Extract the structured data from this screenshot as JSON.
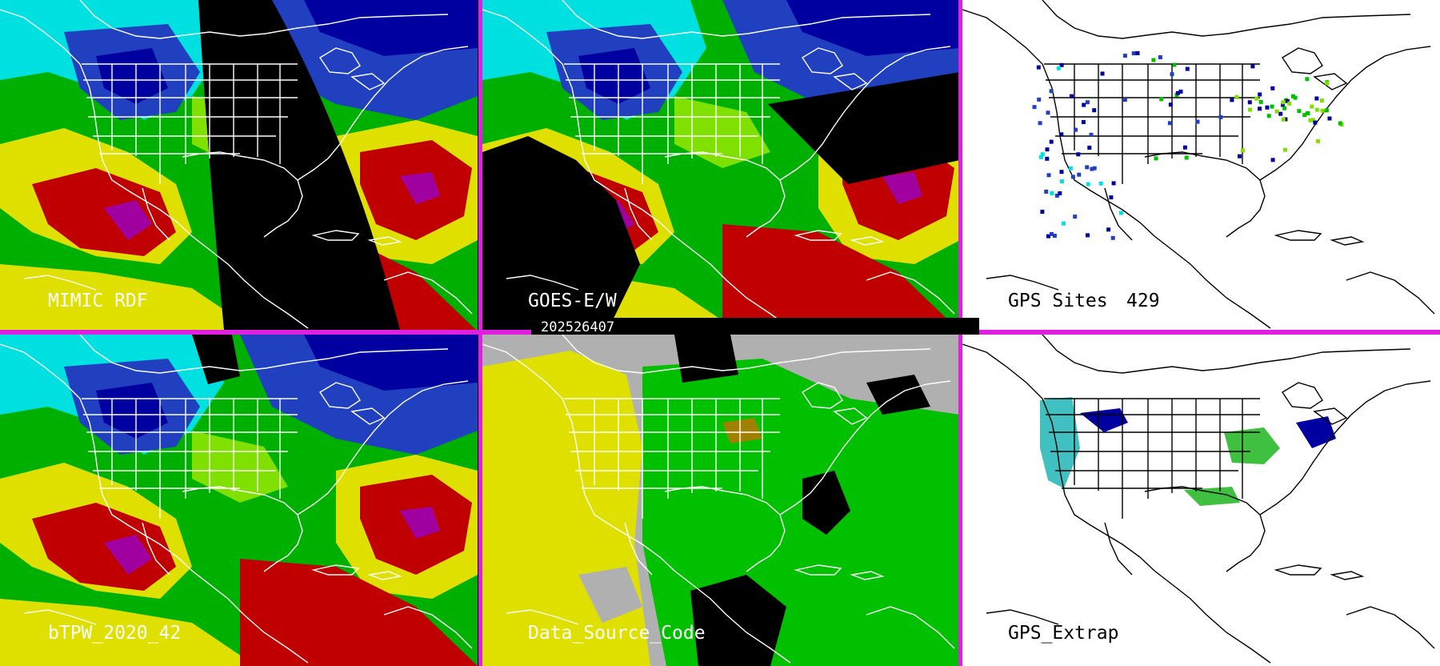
{
  "panels": [
    {
      "id": "mimic",
      "label": "MIMIC RDF"
    },
    {
      "id": "goes",
      "label": "GOES-E/W"
    },
    {
      "id": "gps_sites",
      "label": "GPS Sites",
      "count": "429"
    },
    {
      "id": "btpw",
      "label": "bTPW_2020_42"
    },
    {
      "id": "dsc",
      "label": "Data_Source_Code"
    },
    {
      "id": "gps_extrap",
      "label": "GPS_Extrap"
    }
  ],
  "timestamp": "202526407",
  "colors": {
    "divider": "#e020e0",
    "background": "#000000",
    "map_lines_dark": "#ffffff",
    "map_lines_light": "#000000",
    "moisture_scale": [
      "#0000a0",
      "#2040c0",
      "#00e0e0",
      "#00c000",
      "#80e000",
      "#e0e000",
      "#c00000",
      "#a000a0"
    ],
    "data_source_yellow": "#e0e000",
    "data_source_green": "#00c000",
    "data_source_gray": "#b0b0b0"
  }
}
